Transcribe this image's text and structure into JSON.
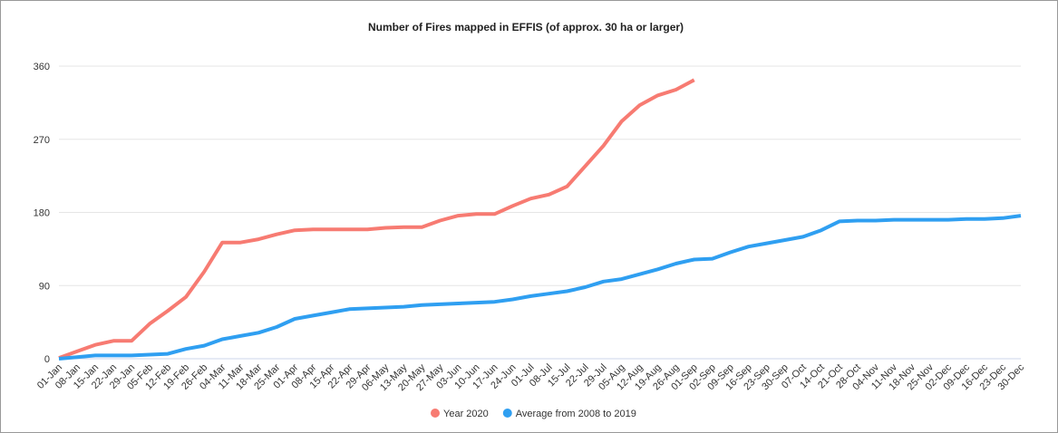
{
  "chart_data": {
    "type": "line",
    "title": "Number of Fires mapped in EFFIS (of approx. 30 ha or larger)",
    "categories": [
      "01-Jan",
      "08-Jan",
      "15-Jan",
      "22-Jan",
      "29-Jan",
      "05-Feb",
      "12-Feb",
      "19-Feb",
      "26-Feb",
      "04-Mar",
      "11-Mar",
      "18-Mar",
      "25-Mar",
      "01-Apr",
      "08-Apr",
      "15-Apr",
      "22-Apr",
      "29-Apr",
      "06-May",
      "13-May",
      "20-May",
      "27-May",
      "03-Jun",
      "10-Jun",
      "17-Jun",
      "24-Jun",
      "01-Jul",
      "08-Jul",
      "15-Jul",
      "22-Jul",
      "29-Jul",
      "05-Aug",
      "12-Aug",
      "19-Aug",
      "26-Aug",
      "01-Sep",
      "02-Sep",
      "09-Sep",
      "16-Sep",
      "23-Sep",
      "30-Sep",
      "07-Oct",
      "14-Oct",
      "21-Oct",
      "28-Oct",
      "04-Nov",
      "11-Nov",
      "18-Nov",
      "25-Nov",
      "02-Dec",
      "09-Dec",
      "16-Dec",
      "23-Dec",
      "30-Dec"
    ],
    "series": [
      {
        "name": "Year 2020",
        "color": "#f77b72",
        "values": [
          1,
          9,
          17,
          22,
          22,
          43,
          59,
          76,
          107,
          143,
          143,
          147,
          153,
          158,
          159,
          159,
          159,
          159,
          161,
          162,
          162,
          170,
          176,
          178,
          178,
          188,
          197,
          202,
          212,
          237,
          262,
          292,
          312,
          324,
          331,
          343,
          null,
          null,
          null,
          null,
          null,
          null,
          null,
          null,
          null,
          null,
          null,
          null,
          null,
          null,
          null,
          null,
          null,
          null
        ]
      },
      {
        "name": "Average from 2008 to 2019",
        "color": "#2f9ff1",
        "values": [
          0,
          2,
          4,
          4,
          4,
          5,
          6,
          12,
          16,
          24,
          28,
          32,
          39,
          49,
          53,
          57,
          61,
          62,
          63,
          64,
          66,
          67,
          68,
          69,
          70,
          73,
          77,
          80,
          83,
          88,
          95,
          98,
          104,
          110,
          117,
          122,
          123,
          131,
          138,
          142,
          146,
          150,
          158,
          169,
          170,
          170,
          171,
          171,
          171,
          171,
          172,
          172,
          173,
          176
        ]
      }
    ],
    "ylim": [
      0,
      360
    ],
    "yticks": [
      0,
      90,
      180,
      270,
      360
    ],
    "grid": true,
    "legend": "bottom"
  }
}
